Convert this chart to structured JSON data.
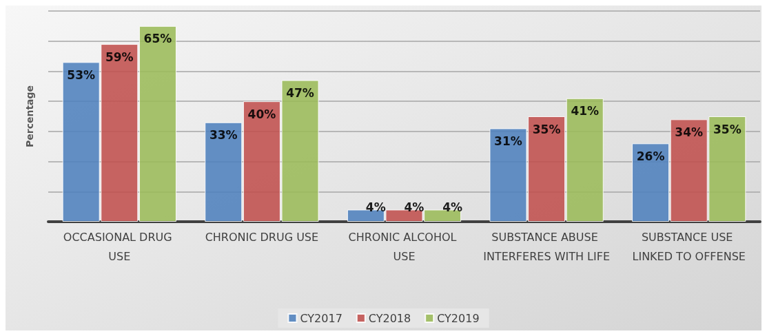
{
  "chart_data": {
    "type": "bar",
    "ylabel": "Percentage",
    "categories": [
      "OCCASIONAL DRUG USE",
      "CHRONIC DRUG USE",
      "CHRONIC ALCOHOL USE",
      "SUBSTANCE ABUSE INTERFERES WITH LIFE",
      "SUBSTANCE USE LINKED TO OFFENSE"
    ],
    "series": [
      {
        "name": "CY2017",
        "color": "#4f81bd",
        "values": [
          53,
          33,
          4,
          31,
          26
        ],
        "value_labels": [
          "53%",
          "33%",
          "4%",
          "31%",
          "26%"
        ]
      },
      {
        "name": "CY2018",
        "color": "#c0504d",
        "values": [
          59,
          40,
          4,
          35,
          34
        ],
        "value_labels": [
          "59%",
          "40%",
          "4%",
          "35%",
          "34%"
        ]
      },
      {
        "name": "CY2019",
        "color": "#9bbb59",
        "values": [
          65,
          47,
          4,
          41,
          35
        ],
        "value_labels": [
          "65%",
          "47%",
          "4%",
          "41%",
          "35%"
        ]
      }
    ],
    "ylim": [
      0,
      70
    ],
    "yticks": [
      {
        "value": 0,
        "label": null
      },
      {
        "value": 10,
        "label": null
      },
      {
        "value": 20,
        "label": null
      },
      {
        "value": 30,
        "label": null
      },
      {
        "value": 40,
        "label": null
      },
      {
        "value": 50,
        "label": null
      },
      {
        "value": 60,
        "label": null
      },
      {
        "value": 70,
        "label": null
      }
    ],
    "grid": "y",
    "legend": "bottom",
    "tick_labels": "x"
  }
}
